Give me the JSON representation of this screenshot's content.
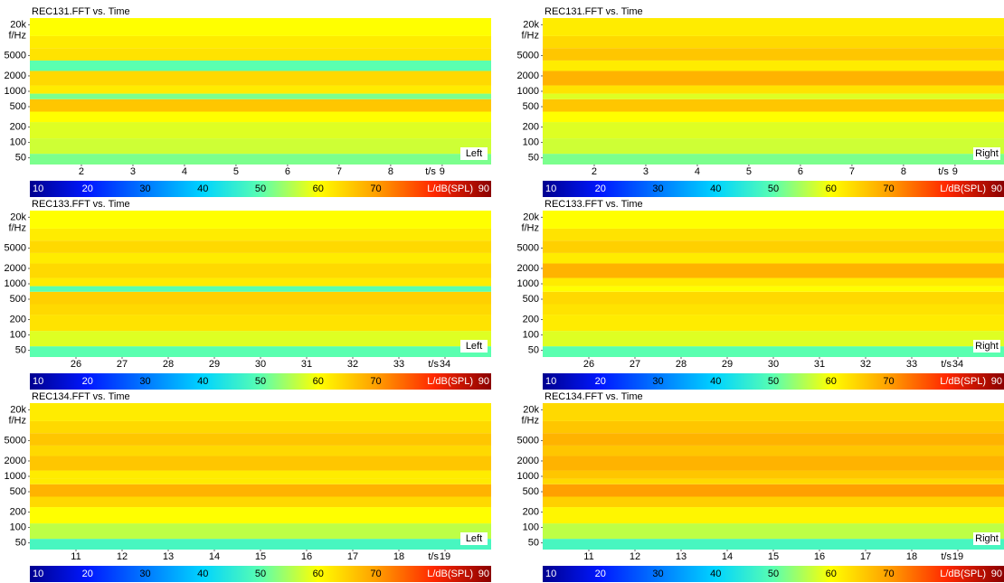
{
  "chart_data": [
    {
      "type": "heatmap",
      "title": "REC131.FFT vs. Time",
      "channel": "Left",
      "xlabel": "t/s",
      "ylabel": "f/Hz",
      "xlim": [
        1,
        9.95
      ],
      "xticks": [
        2,
        3,
        4,
        5,
        6,
        7,
        8,
        9
      ],
      "ylim": [
        37,
        27000
      ],
      "log_y": true,
      "yticks": [
        50,
        100,
        200,
        500,
        1000,
        2000,
        5000,
        {
          "value": 20000,
          "label": "20k"
        }
      ],
      "band_edges": [
        37,
        60,
        120,
        250,
        400,
        700,
        900,
        1300,
        2500,
        4000,
        7000,
        12000,
        27000
      ],
      "values": [
        52,
        57,
        58,
        60,
        66,
        52,
        62,
        64,
        50,
        63,
        62,
        60
      ],
      "colorbar": {
        "label": "L/dB(SPL)",
        "lim": [
          10,
          90
        ],
        "ticks": [
          10,
          20,
          30,
          40,
          50,
          60,
          70,
          90
        ]
      },
      "colormap": [
        "#00008f",
        "#0018ff",
        "#0078ff",
        "#00d4ff",
        "#5affb0",
        "#ffff00",
        "#ffa000",
        "#ff2800",
        "#8b0000"
      ]
    },
    {
      "type": "heatmap",
      "title": "REC131.FFT vs. Time",
      "channel": "Right",
      "xlabel": "t/s",
      "ylabel": "f/Hz",
      "xlim": [
        1,
        9.95
      ],
      "xticks": [
        2,
        3,
        4,
        5,
        6,
        7,
        8,
        9
      ],
      "ylim": [
        37,
        27000
      ],
      "log_y": true,
      "yticks": [
        50,
        100,
        200,
        500,
        1000,
        2000,
        5000,
        {
          "value": 20000,
          "label": "20k"
        }
      ],
      "band_edges": [
        37,
        60,
        120,
        250,
        400,
        700,
        900,
        1300,
        2500,
        4000,
        7000,
        12000,
        27000
      ],
      "values": [
        52,
        57,
        58,
        60,
        66,
        58,
        63,
        68,
        62,
        66,
        64,
        62
      ],
      "colorbar": {
        "label": "L/dB(SPL)",
        "lim": [
          10,
          90
        ],
        "ticks": [
          10,
          20,
          30,
          40,
          50,
          60,
          70,
          90
        ]
      },
      "colormap": [
        "#00008f",
        "#0018ff",
        "#0078ff",
        "#00d4ff",
        "#5affb0",
        "#ffff00",
        "#ffa000",
        "#ff2800",
        "#8b0000"
      ]
    },
    {
      "type": "heatmap",
      "title": "REC133.FFT vs. Time",
      "channel": "Left",
      "xlabel": "t/s",
      "ylabel": "f/Hz",
      "xlim": [
        25,
        35
      ],
      "xticks": [
        26,
        27,
        28,
        29,
        30,
        31,
        32,
        33,
        34
      ],
      "ylim": [
        37,
        27000
      ],
      "log_y": true,
      "yticks": [
        50,
        100,
        200,
        500,
        1000,
        2000,
        5000,
        {
          "value": 20000,
          "label": "20k"
        }
      ],
      "band_edges": [
        37,
        60,
        120,
        250,
        400,
        700,
        900,
        1300,
        2500,
        4000,
        7000,
        12000,
        27000
      ],
      "values": [
        50,
        58,
        63,
        64,
        65,
        50,
        62,
        64,
        62,
        64,
        62,
        60
      ],
      "colorbar": {
        "label": "L/dB(SPL)",
        "lim": [
          10,
          90
        ],
        "ticks": [
          10,
          20,
          30,
          40,
          50,
          60,
          70,
          90
        ]
      },
      "colormap": [
        "#00008f",
        "#0018ff",
        "#0078ff",
        "#00d4ff",
        "#5affb0",
        "#ffff00",
        "#ffa000",
        "#ff2800",
        "#8b0000"
      ]
    },
    {
      "type": "heatmap",
      "title": "REC133.FFT vs. Time",
      "channel": "Right",
      "xlabel": "t/s",
      "ylabel": "f/Hz",
      "xlim": [
        25,
        35
      ],
      "xticks": [
        26,
        27,
        28,
        29,
        30,
        31,
        32,
        33,
        34
      ],
      "ylim": [
        37,
        27000
      ],
      "log_y": true,
      "yticks": [
        50,
        100,
        200,
        500,
        1000,
        2000,
        5000,
        {
          "value": 20000,
          "label": "20k"
        }
      ],
      "band_edges": [
        37,
        60,
        120,
        250,
        400,
        700,
        900,
        1300,
        2500,
        4000,
        7000,
        12000,
        27000
      ],
      "values": [
        50,
        58,
        62,
        63,
        64,
        60,
        62,
        68,
        62,
        65,
        63,
        60
      ],
      "colorbar": {
        "label": "L/dB(SPL)",
        "lim": [
          10,
          90
        ],
        "ticks": [
          10,
          20,
          30,
          40,
          50,
          60,
          70,
          90
        ]
      },
      "colormap": [
        "#00008f",
        "#0018ff",
        "#0078ff",
        "#00d4ff",
        "#5affb0",
        "#ffff00",
        "#ffa000",
        "#ff2800",
        "#8b0000"
      ]
    },
    {
      "type": "heatmap",
      "title": "REC134.FFT vs. Time",
      "channel": "Left",
      "xlabel": "t/s",
      "ylabel": "f/Hz",
      "xlim": [
        10,
        20
      ],
      "xticks": [
        11,
        12,
        13,
        14,
        15,
        16,
        17,
        18,
        19
      ],
      "ylim": [
        37,
        27000
      ],
      "log_y": true,
      "yticks": [
        50,
        100,
        200,
        500,
        1000,
        2000,
        5000,
        {
          "value": 20000,
          "label": "20k"
        }
      ],
      "band_edges": [
        37,
        60,
        120,
        250,
        400,
        700,
        900,
        1300,
        2500,
        4000,
        7000,
        12000,
        27000
      ],
      "values": [
        48,
        56,
        60,
        64,
        68,
        62,
        62,
        66,
        64,
        66,
        64,
        62
      ],
      "colorbar": {
        "label": "L/dB(SPL)",
        "lim": [
          10,
          90
        ],
        "ticks": [
          10,
          20,
          30,
          40,
          50,
          60,
          70,
          90
        ]
      },
      "colormap": [
        "#00008f",
        "#0018ff",
        "#0078ff",
        "#00d4ff",
        "#5affb0",
        "#ffff00",
        "#ffa000",
        "#ff2800",
        "#8b0000"
      ]
    },
    {
      "type": "heatmap",
      "title": "REC134.FFT vs. Time",
      "channel": "Right",
      "xlabel": "t/s",
      "ylabel": "f/Hz",
      "xlim": [
        10,
        20
      ],
      "xticks": [
        11,
        12,
        13,
        14,
        15,
        16,
        17,
        18,
        19
      ],
      "ylim": [
        37,
        27000
      ],
      "log_y": true,
      "yticks": [
        50,
        100,
        200,
        500,
        1000,
        2000,
        5000,
        {
          "value": 20000,
          "label": "20k"
        }
      ],
      "band_edges": [
        37,
        60,
        120,
        250,
        400,
        700,
        900,
        1300,
        2500,
        4000,
        7000,
        12000,
        27000
      ],
      "values": [
        48,
        56,
        61,
        65,
        70,
        64,
        66,
        68,
        66,
        68,
        66,
        64
      ],
      "colorbar": {
        "label": "L/dB(SPL)",
        "lim": [
          10,
          90
        ],
        "ticks": [
          10,
          20,
          30,
          40,
          50,
          60,
          70,
          90
        ]
      },
      "colormap": [
        "#00008f",
        "#0018ff",
        "#0078ff",
        "#00d4ff",
        "#5affb0",
        "#ffff00",
        "#ffa000",
        "#ff2800",
        "#8b0000"
      ]
    }
  ]
}
